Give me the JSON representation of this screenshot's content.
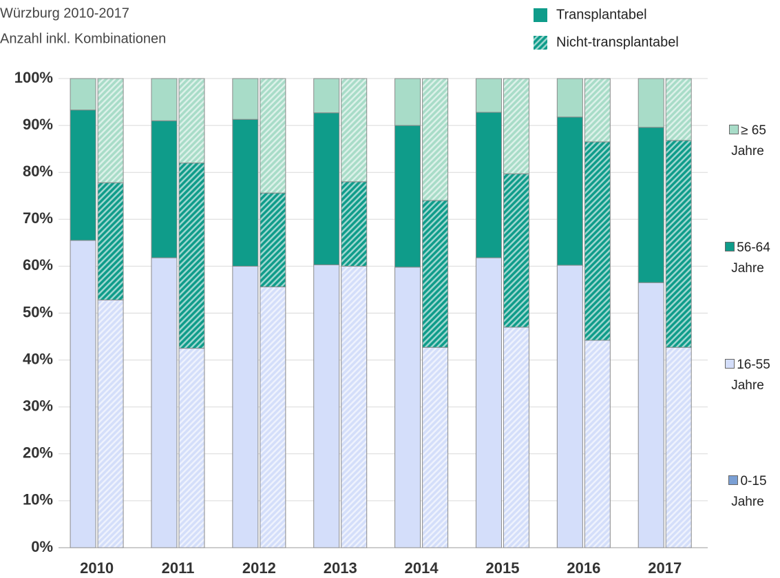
{
  "chart_data": {
    "type": "bar",
    "stacked": true,
    "subtitle": "Würzburg 2010-2017",
    "note": "Anzahl inkl. Kombinationen",
    "categories": [
      "2010",
      "2011",
      "2012",
      "2013",
      "2014",
      "2015",
      "2016",
      "2017"
    ],
    "groups": [
      {
        "name": "Transplantabel",
        "pattern": "solid"
      },
      {
        "name": "Nicht-transplantabel",
        "pattern": "hatch"
      }
    ],
    "series": [
      {
        "name": "0-15 Jahre",
        "color": "#7a9fd4",
        "values": [
          [
            0,
            0
          ],
          [
            0,
            0
          ],
          [
            0,
            0
          ],
          [
            0,
            0
          ],
          [
            0,
            0
          ],
          [
            0,
            0
          ],
          [
            0,
            0
          ],
          [
            0,
            0
          ]
        ]
      },
      {
        "name": "16-55 Jahre",
        "color": "#d4defa",
        "values": [
          [
            65.5,
            52.8
          ],
          [
            61.8,
            42.5
          ],
          [
            60,
            55.6
          ],
          [
            60.3,
            60
          ],
          [
            59.8,
            42.7
          ],
          [
            61.8,
            47
          ],
          [
            60.2,
            44.2
          ],
          [
            56.5,
            42.7
          ]
        ]
      },
      {
        "name": "56-64 Jahre",
        "color": "#0f9c8a",
        "values": [
          [
            27.8,
            25
          ],
          [
            29.2,
            39.5
          ],
          [
            31.3,
            20
          ],
          [
            32.4,
            18
          ],
          [
            30.2,
            31.3
          ],
          [
            31,
            32.7
          ],
          [
            31.6,
            42.3
          ],
          [
            33.1,
            44.1
          ]
        ]
      },
      {
        "name": "≥ 65 Jahre",
        "color": "#a8dcc8",
        "values": [
          [
            6.7,
            22.2
          ],
          [
            9,
            18
          ],
          [
            8.7,
            24.4
          ],
          [
            7.3,
            22
          ],
          [
            10,
            26
          ],
          [
            7.2,
            20.3
          ],
          [
            8.2,
            13.5
          ],
          [
            10.4,
            13.2
          ]
        ]
      }
    ],
    "ylim": [
      0,
      100
    ],
    "yticks": [
      {
        "value": 0,
        "label": "0%"
      },
      {
        "value": 10,
        "label": "10%"
      },
      {
        "value": 20,
        "label": "20%"
      },
      {
        "value": 30,
        "label": "30%"
      },
      {
        "value": 40,
        "label": "40%"
      },
      {
        "value": 50,
        "label": "50%"
      },
      {
        "value": 60,
        "label": "60%"
      },
      {
        "value": 70,
        "label": "70%"
      },
      {
        "value": 80,
        "label": "80%"
      },
      {
        "value": 90,
        "label": "90%"
      },
      {
        "value": 100,
        "label": "100%"
      }
    ],
    "grid": true
  }
}
